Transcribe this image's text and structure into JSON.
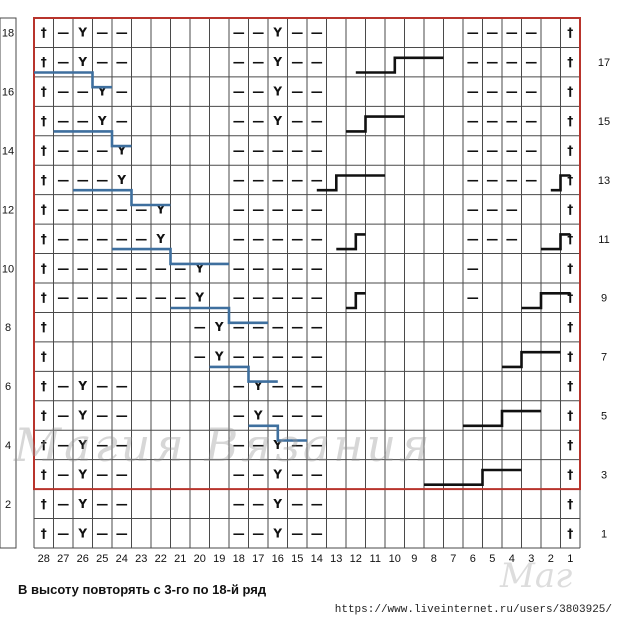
{
  "symbols": {
    "purl": "—",
    "slip": "Y",
    "edge": "†"
  },
  "colors": {
    "grid": "#4a4a4a",
    "repeat_frame": "#b8342c",
    "line_black": "#111111",
    "line_blue": "#3e6f9e"
  },
  "column_numbers": [
    "28",
    "27",
    "26",
    "25",
    "24",
    "23",
    "22",
    "21",
    "20",
    "19",
    "18",
    "17",
    "16",
    "15",
    "14",
    "13",
    "12",
    "11",
    "10",
    "9",
    "8",
    "7",
    "6",
    "5",
    "4",
    "3",
    "2",
    "1"
  ],
  "right_row_numbers": [
    {
      "row": 17,
      "label": "17"
    },
    {
      "row": 15,
      "label": "15"
    },
    {
      "row": 13,
      "label": "13"
    },
    {
      "row": 11,
      "label": "11"
    },
    {
      "row": 9,
      "label": "9"
    },
    {
      "row": 7,
      "label": "7"
    },
    {
      "row": 5,
      "label": "5"
    },
    {
      "row": 3,
      "label": "3"
    },
    {
      "row": 1,
      "label": "1"
    }
  ],
  "left_row_numbers": [
    {
      "row": 18,
      "label": "18"
    },
    {
      "row": 16,
      "label": "16"
    },
    {
      "row": 14,
      "label": "14"
    },
    {
      "row": 12,
      "label": "12"
    },
    {
      "row": 10,
      "label": "10"
    },
    {
      "row": 8,
      "label": "8"
    },
    {
      "row": 6,
      "label": "6"
    },
    {
      "row": 4,
      "label": "4"
    },
    {
      "row": 2,
      "label": "2"
    }
  ],
  "grid_rows": [
    {
      "row": 18,
      "cells": "tPYPP.....PPYPP.......PPPP.t"
    },
    {
      "row": 17,
      "cells": "tPYPP.....PPYPP.......PPPP.t"
    },
    {
      "row": 16,
      "cells": "tPPYP.....PPYPP.......PPPP.t"
    },
    {
      "row": 15,
      "cells": "tPPYP.....PPYPP.......PPPP.t"
    },
    {
      "row": 14,
      "cells": "tPPPY.....PPPPP.......PPPP.t"
    },
    {
      "row": 13,
      "cells": "tPPPY.....PPPPP.......PPPP.t"
    },
    {
      "row": 12,
      "cells": "tPPPPPY...PPPPP.......PPP..t"
    },
    {
      "row": 11,
      "cells": "tPPPPPY...PPPPP.......PPP..t"
    },
    {
      "row": 10,
      "cells": "tPPPPPPPY.PPPPP.......P....t"
    },
    {
      "row": 9,
      "cells": "tPPPPPPPY.PPPPP.......P....t"
    },
    {
      "row": 8,
      "cells": "t.......PYPPPPP............t"
    },
    {
      "row": 7,
      "cells": "t.......PYPPPPP............t"
    },
    {
      "row": 6,
      "cells": "tPYPP.....PYPPP............t"
    },
    {
      "row": 5,
      "cells": "tPYPP.....PYPPP............t"
    },
    {
      "row": 4,
      "cells": "tPYPP.....PPYPP............t"
    },
    {
      "row": 3,
      "cells": "tPYPP.....PPYPP............t"
    },
    {
      "row": 2,
      "cells": "tPYPP.....PPYPP............t"
    },
    {
      "row": 1,
      "cells": "tPYPP.....PPYPP............t"
    }
  ],
  "repeat_rows": {
    "from": 3,
    "to": 18
  },
  "stairs_black": [
    {
      "color": "black",
      "pts": [
        [
          20,
          3
        ],
        [
          23,
          3
        ],
        [
          23,
          3.5
        ],
        [
          25,
          3.5
        ]
      ]
    },
    {
      "color": "black",
      "pts": [
        [
          22,
          5
        ],
        [
          24,
          5
        ],
        [
          24,
          5.5
        ],
        [
          26,
          5.5
        ]
      ]
    },
    {
      "color": "black",
      "pts": [
        [
          24,
          7
        ],
        [
          25,
          7
        ],
        [
          25,
          7.5
        ],
        [
          27,
          7.5
        ]
      ]
    },
    {
      "color": "black",
      "pts": [
        [
          25,
          9
        ],
        [
          26,
          9
        ],
        [
          26,
          9.5
        ],
        [
          27.5,
          9.5
        ]
      ]
    },
    {
      "color": "black",
      "pts": [
        [
          26,
          11
        ],
        [
          27,
          11
        ],
        [
          27,
          11.5
        ],
        [
          27.5,
          11.5
        ]
      ]
    },
    {
      "color": "black",
      "pts": [
        [
          26.5,
          13
        ],
        [
          27,
          13
        ],
        [
          27,
          13.5
        ],
        [
          27.5,
          13.5
        ]
      ]
    },
    {
      "color": "black",
      "pts": [
        [
          16,
          9
        ],
        [
          16.5,
          9
        ],
        [
          16.5,
          9.5
        ],
        [
          17,
          9.5
        ]
      ]
    },
    {
      "color": "black",
      "pts": [
        [
          15.5,
          11
        ],
        [
          16.5,
          11
        ],
        [
          16.5,
          11.5
        ],
        [
          17,
          11.5
        ]
      ]
    },
    {
      "color": "black",
      "pts": [
        [
          14.5,
          13
        ],
        [
          15.5,
          13
        ],
        [
          15.5,
          13.5
        ],
        [
          18,
          13.5
        ]
      ]
    },
    {
      "color": "black",
      "pts": [
        [
          16,
          15
        ],
        [
          17,
          15
        ],
        [
          17,
          15.5
        ],
        [
          19,
          15.5
        ]
      ]
    },
    {
      "color": "black",
      "pts": [
        [
          16.5,
          17
        ],
        [
          18.5,
          17
        ],
        [
          18.5,
          17.5
        ],
        [
          21,
          17.5
        ]
      ]
    }
  ],
  "stairs_blue": [
    {
      "color": "blue",
      "pts": [
        [
          11,
          5
        ],
        [
          12.5,
          5
        ],
        [
          12.5,
          4.5
        ],
        [
          14,
          4.5
        ]
      ]
    },
    {
      "color": "blue",
      "pts": [
        [
          9,
          7
        ],
        [
          11,
          7
        ],
        [
          11,
          6.5
        ],
        [
          12.5,
          6.5
        ]
      ]
    },
    {
      "color": "blue",
      "pts": [
        [
          7,
          9
        ],
        [
          10,
          9
        ],
        [
          10,
          8.5
        ],
        [
          12,
          8.5
        ]
      ]
    },
    {
      "color": "blue",
      "pts": [
        [
          4,
          11
        ],
        [
          7,
          11
        ],
        [
          7,
          10.5
        ],
        [
          10,
          10.5
        ]
      ]
    },
    {
      "color": "blue",
      "pts": [
        [
          2,
          13
        ],
        [
          5,
          13
        ],
        [
          5,
          12.5
        ],
        [
          7,
          12.5
        ]
      ]
    },
    {
      "color": "blue",
      "pts": [
        [
          1,
          15
        ],
        [
          4,
          15
        ],
        [
          4,
          14.5
        ],
        [
          5,
          14.5
        ]
      ]
    },
    {
      "color": "blue",
      "pts": [
        [
          0,
          17
        ],
        [
          3,
          17
        ],
        [
          3,
          16.5
        ],
        [
          4,
          16.5
        ]
      ]
    }
  ],
  "caption": "В высоту повторять с 3-го по 18-й ряд",
  "url": "https://www.liveinternet.ru/users/3803925/",
  "watermark": {
    "main": "Магия Вязания",
    "corner": "Маг"
  }
}
